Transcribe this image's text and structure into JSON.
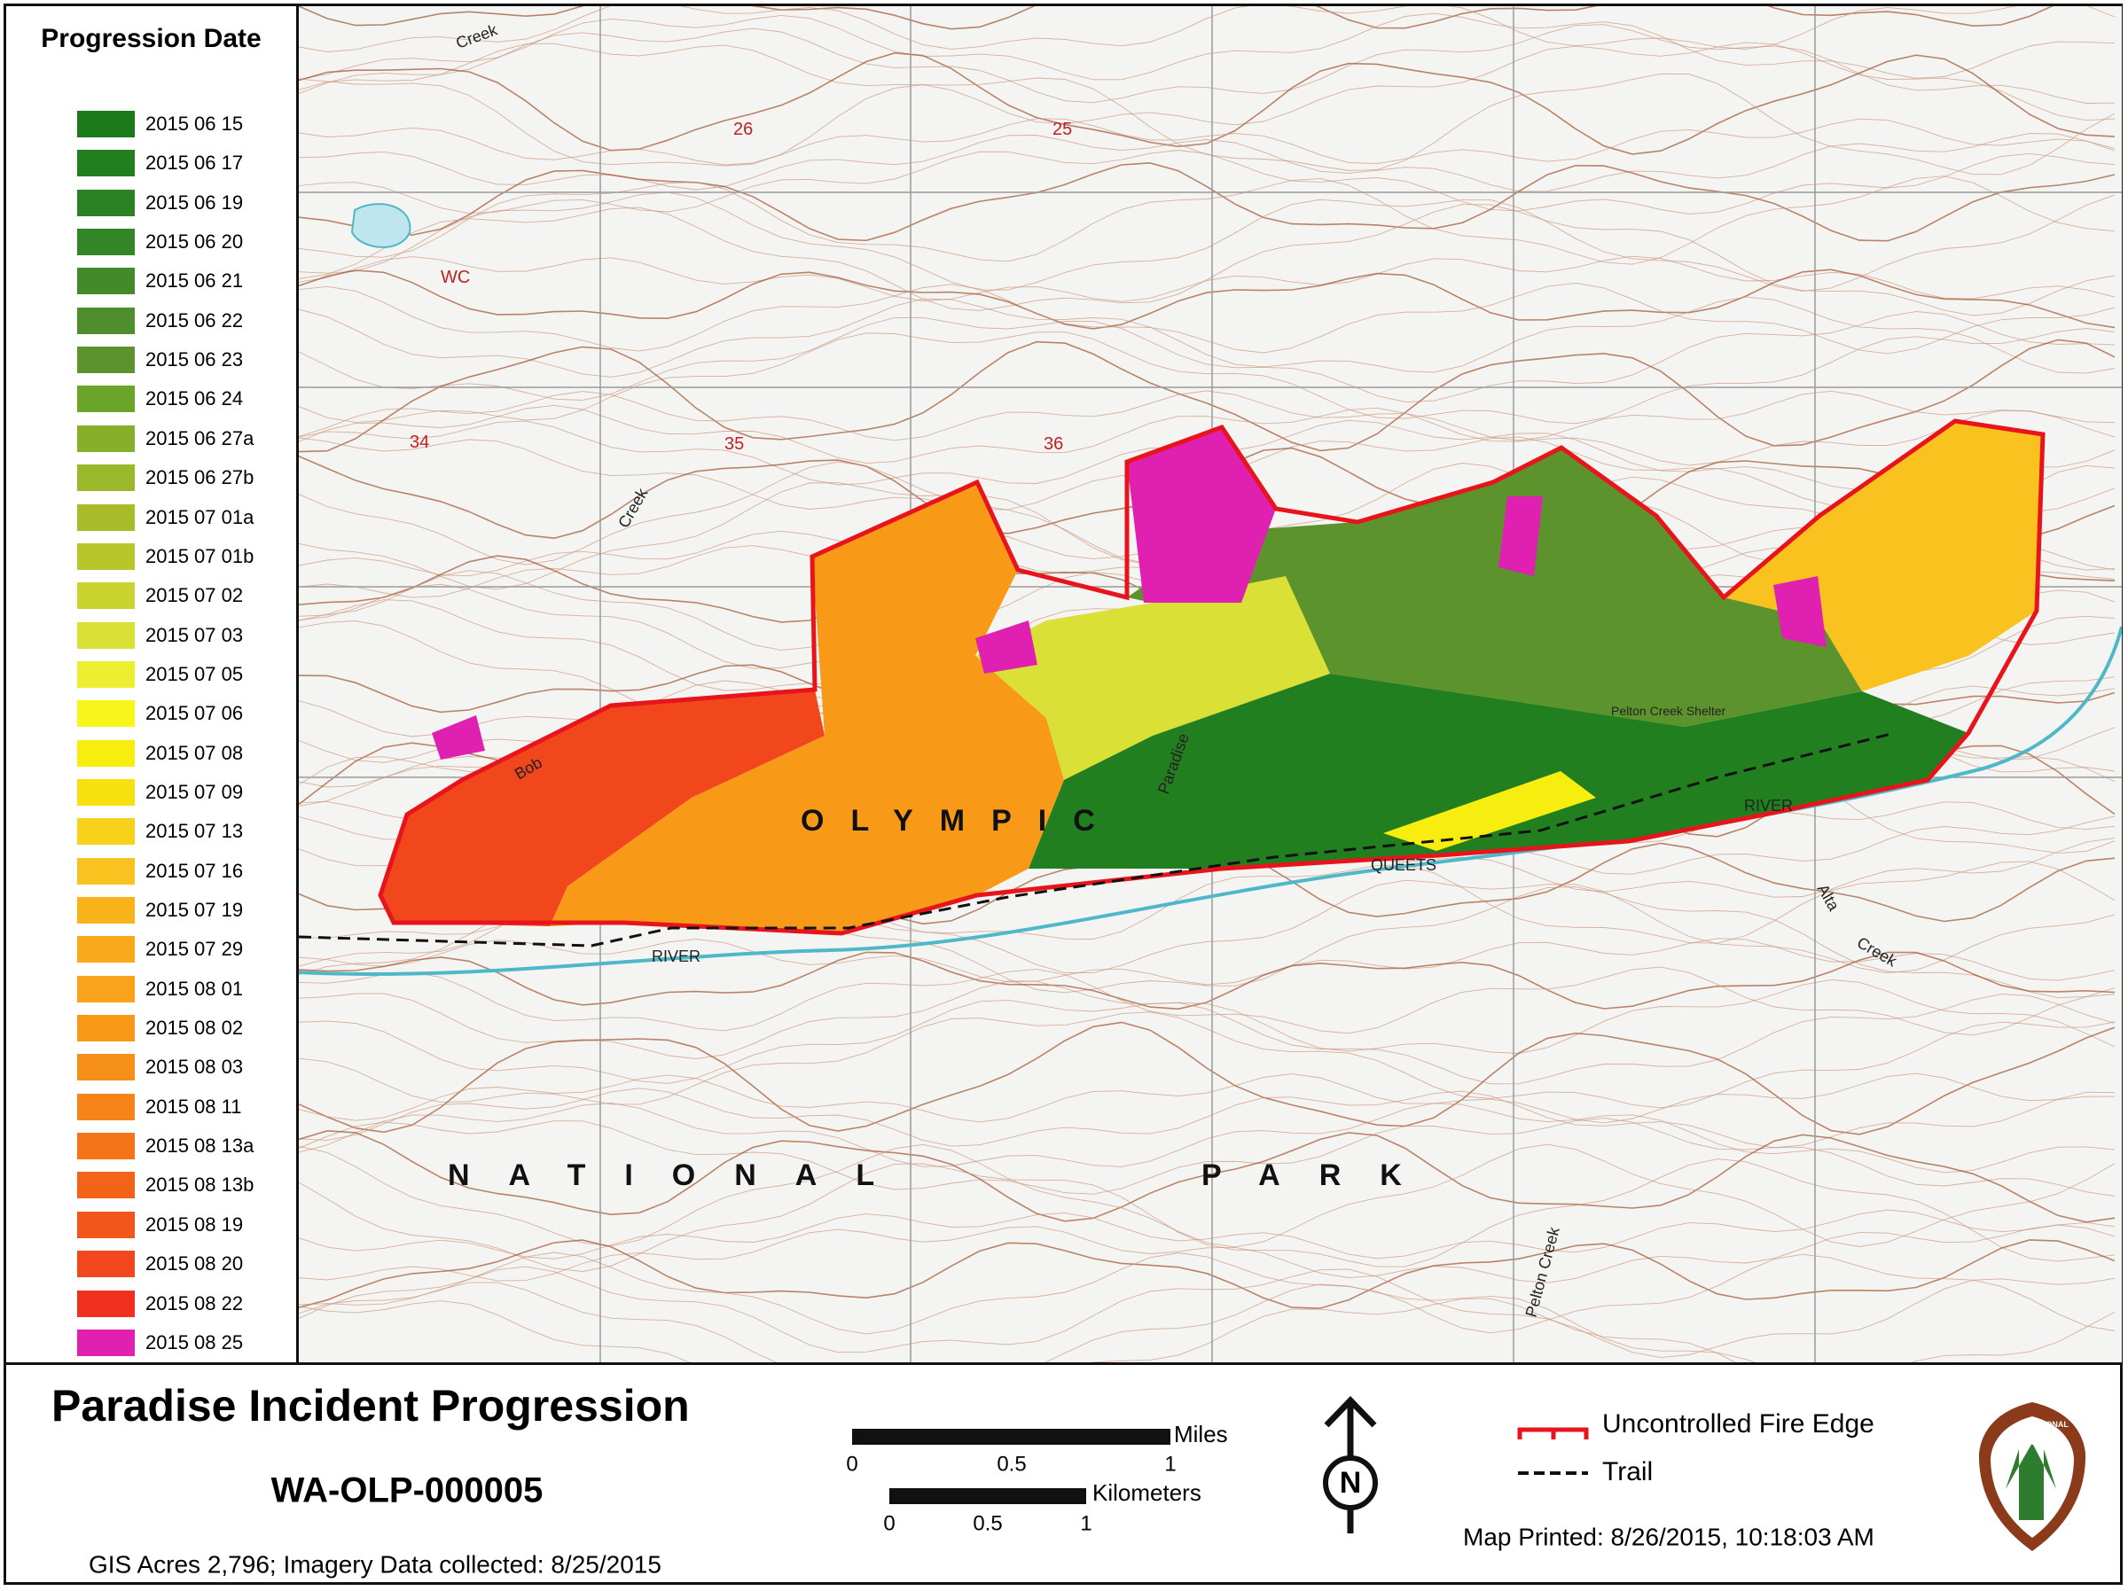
{
  "legend": {
    "title": "Progression Date",
    "entries": [
      {
        "label": "2015 06 15",
        "color": "#1a7a1a"
      },
      {
        "label": "2015 06 17",
        "color": "#217f1f"
      },
      {
        "label": "2015 06 19",
        "color": "#2a8224"
      },
      {
        "label": "2015 06 20",
        "color": "#338628"
      },
      {
        "label": "2015 06 21",
        "color": "#428a2a"
      },
      {
        "label": "2015 06 22",
        "color": "#4f8e2c"
      },
      {
        "label": "2015 06 23",
        "color": "#5c932c"
      },
      {
        "label": "2015 06 24",
        "color": "#6aa428"
      },
      {
        "label": "2015 06 27a",
        "color": "#86b02a"
      },
      {
        "label": "2015 06 27b",
        "color": "#9ab82a"
      },
      {
        "label": "2015 07 01a",
        "color": "#a8bc2a"
      },
      {
        "label": "2015 07 01b",
        "color": "#b8c62c"
      },
      {
        "label": "2015 07 02",
        "color": "#cad430"
      },
      {
        "label": "2015 07 03",
        "color": "#dae036"
      },
      {
        "label": "2015 07 05",
        "color": "#eeee30"
      },
      {
        "label": "2015 07 06",
        "color": "#f7f51c"
      },
      {
        "label": "2015 07 08",
        "color": "#f7ee10"
      },
      {
        "label": "2015 07 09",
        "color": "#f8e010"
      },
      {
        "label": "2015 07 13",
        "color": "#f8d21a"
      },
      {
        "label": "2015 07 16",
        "color": "#f9c21e"
      },
      {
        "label": "2015 07 19",
        "color": "#f9b41c"
      },
      {
        "label": "2015 07 29",
        "color": "#f9aa1a"
      },
      {
        "label": "2015 08 01",
        "color": "#f9a21a"
      },
      {
        "label": "2015 08 02",
        "color": "#f89a18"
      },
      {
        "label": "2015 08 03",
        "color": "#f79018"
      },
      {
        "label": "2015 08 11",
        "color": "#f68418"
      },
      {
        "label": "2015 08 13a",
        "color": "#f57418"
      },
      {
        "label": "2015 08 13b",
        "color": "#f46418"
      },
      {
        "label": "2015 08 19",
        "color": "#f3561a"
      },
      {
        "label": "2015 08 20",
        "color": "#f2461c"
      },
      {
        "label": "2015 08 22",
        "color": "#f0301c"
      },
      {
        "label": "2015 08 25",
        "color": "#e020b0"
      }
    ]
  },
  "map": {
    "labels": [
      "OLYMPIC",
      "NATIONAL",
      "PARK",
      "QUEETS",
      "RIVER",
      "RIVER",
      "Creek",
      "Creek",
      "Bob",
      "Paradise",
      "Alta",
      "Creek",
      "Pelton Creek",
      "Pelton Creek Shelter",
      "WC",
      "26",
      "25",
      "34",
      "35",
      "36"
    ]
  },
  "footer": {
    "title": "Paradise Incident Progression",
    "incident_id": "WA-OLP-000005",
    "note": "GIS Acres 2,796; Imagery Data collected: 8/25/2015",
    "scale": {
      "miles_label": "Miles",
      "miles_ticks": [
        0,
        0.5,
        1
      ],
      "km_label": "Kilometers",
      "km_ticks": [
        0,
        0.5,
        1
      ]
    },
    "north": "N",
    "legend": [
      "Uncontrolled Fire Edge",
      "Trail"
    ],
    "printed": "Map Printed: 8/26/2015,  10:18:03 AM",
    "logo": [
      "NATIONAL",
      "PARK",
      "SERVICE"
    ]
  }
}
